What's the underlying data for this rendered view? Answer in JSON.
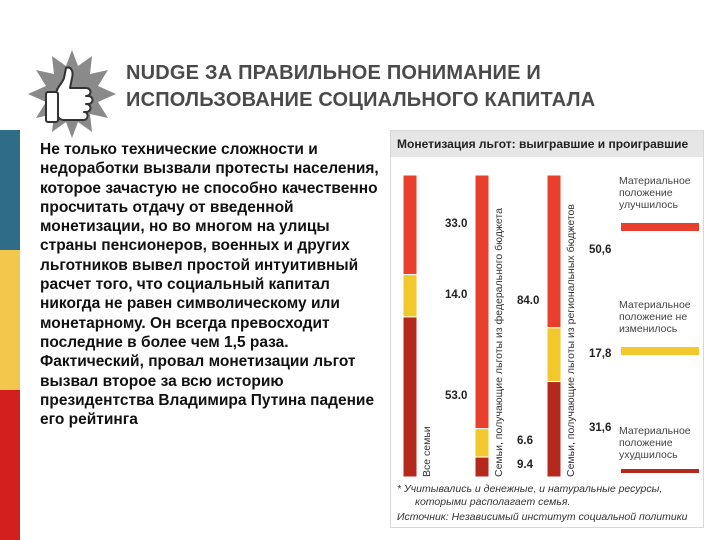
{
  "slide": {
    "title_line1": "NUDGE ЗА ПРАВИЛЬНОЕ ПОНИМАНИЕ И",
    "title_line2": "ИСПОЛЬЗОВАНИЕ СОЦИАЛЬНОГО КАПИТАЛА",
    "icon": "thumbs-up-icon",
    "body": "Не только технические сложности и недоработки вызвали протесты населения, которое зачастую не способно качественно просчитать отдачу от введенной монетизации, но во многом на улицы страны пенсионеров, военных и других льготников вывел простой интуитивный расчет того, что социальный капитал никогда не равен символическому или монетарному. Он всегда превосходит последние в более чем 1,5 раза. Фактический, провал монетизации льгот вызвал второе за всю историю президентства Владимира Путина падение его рейтинга"
  },
  "figure": {
    "header": "Монетизация льгот: выигравшие и проигравшие",
    "footnote_1": "* Учитывались и денежные, и натуральные ресурсы,",
    "footnote_2": "которыми располагает семья.",
    "source": "Источник: Независимый институт социальной политики",
    "colors": {
      "improved": "#e8402c",
      "unchanged": "#f2c92c",
      "worsened": "#b5281c"
    }
  },
  "chart_data": {
    "type": "bar",
    "stacked": true,
    "title": "Монетизация льгот: выигравшие и проигравшие",
    "categories": [
      "Все семьи",
      "Семьи, получающие льготы из федерального бюджета",
      "Семьи, получающие льготы из региональных бюджетов"
    ],
    "series": [
      {
        "name": "Материальное положение улучшилось",
        "values": [
          33.0,
          84.0,
          50.6
        ]
      },
      {
        "name": "Материальное положение не изменилось",
        "values": [
          14.0,
          9.4,
          17.8
        ]
      },
      {
        "name": "Материальное положение ухудшилось",
        "values": [
          53.0,
          6.6,
          31.6
        ]
      }
    ],
    "value_labels": [
      [
        "33.0",
        "14.0",
        "53.0"
      ],
      [
        "84.0",
        "9.4",
        "6.6"
      ],
      [
        "50,6",
        "17,8",
        "31,6"
      ]
    ],
    "legend": [
      "Материальное положение улучшилось",
      "Материальное положение не изменилось",
      "Материальное положение ухудшилось"
    ],
    "legend_position": "right",
    "ylim": [
      0,
      100
    ]
  }
}
